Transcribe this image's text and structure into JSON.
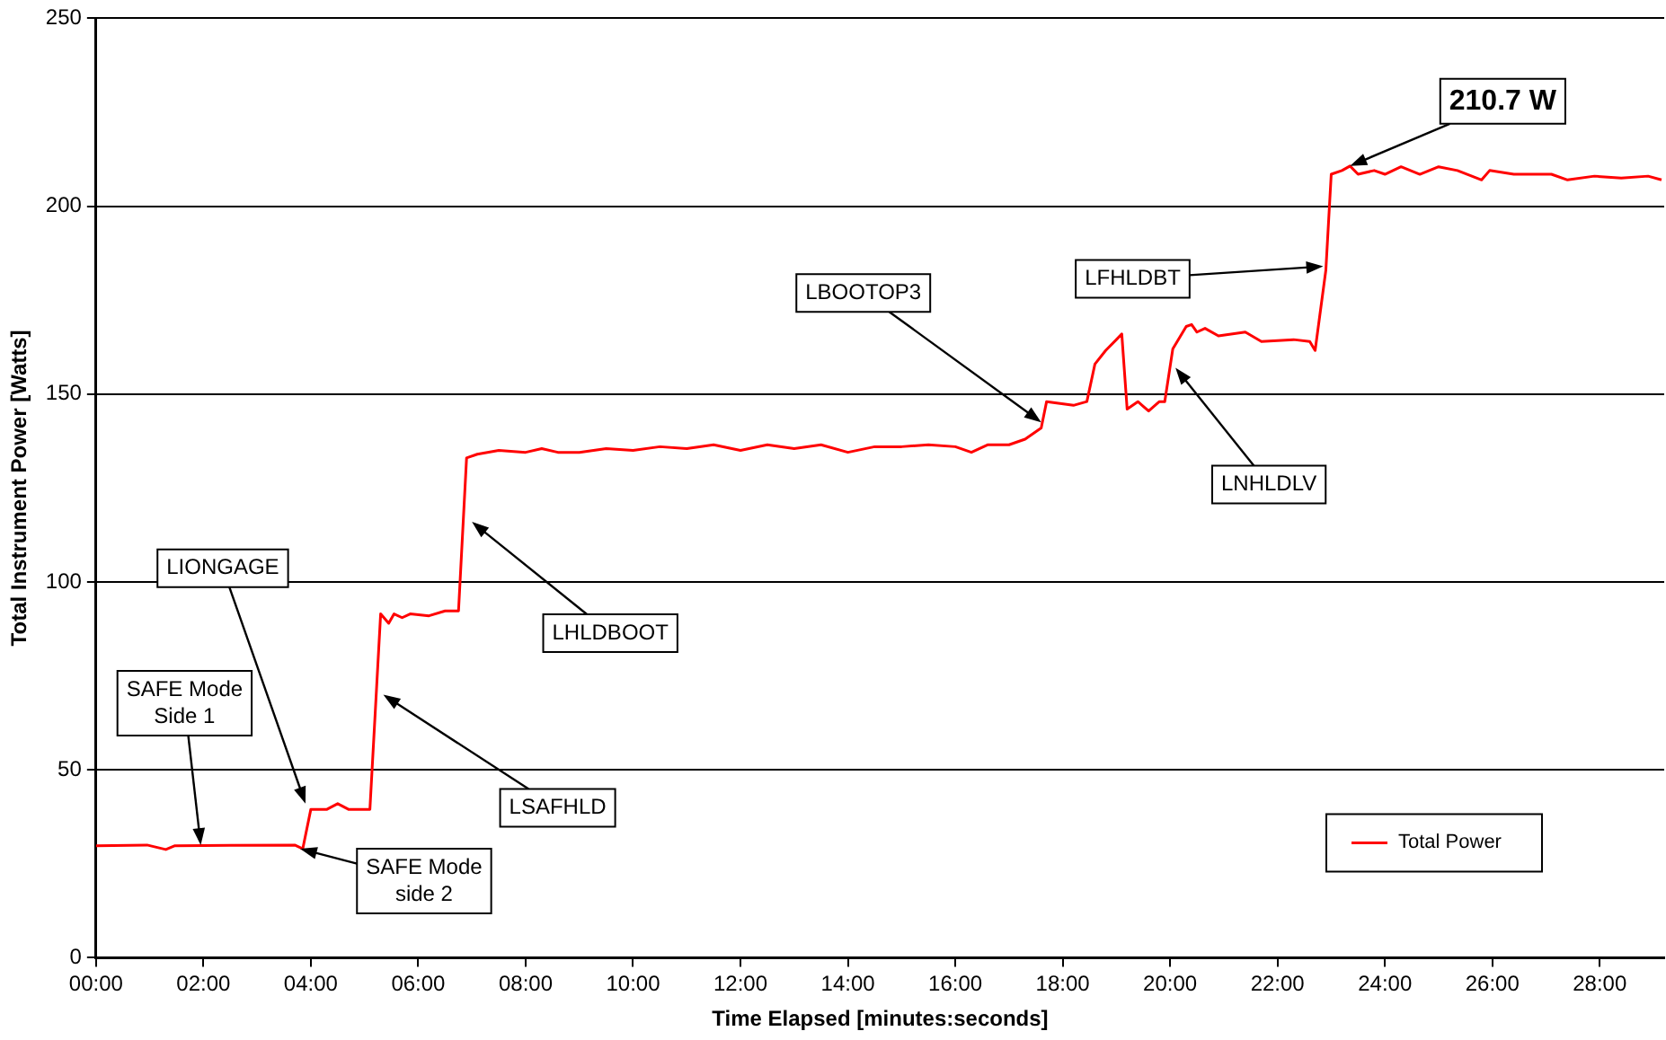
{
  "chart_data": {
    "type": "line",
    "xlabel": "Time Elapsed [minutes:seconds]",
    "ylabel": "Total Instrument Power [Watts]",
    "xlim": [
      0,
      29.2
    ],
    "xticks": [
      {
        "value": 0,
        "label": "00:00"
      },
      {
        "value": 2,
        "label": "02:00"
      },
      {
        "value": 4,
        "label": "04:00"
      },
      {
        "value": 6,
        "label": "06:00"
      },
      {
        "value": 8,
        "label": "08:00"
      },
      {
        "value": 10,
        "label": "10:00"
      },
      {
        "value": 12,
        "label": "12:00"
      },
      {
        "value": 14,
        "label": "14:00"
      },
      {
        "value": 16,
        "label": "16:00"
      },
      {
        "value": 18,
        "label": "18:00"
      },
      {
        "value": 20,
        "label": "20:00"
      },
      {
        "value": 22,
        "label": "22:00"
      },
      {
        "value": 24,
        "label": "24:00"
      },
      {
        "value": 26,
        "label": "26:00"
      },
      {
        "value": 28,
        "label": "28:00"
      }
    ],
    "ylim": [
      0,
      250
    ],
    "yticks": [
      0,
      50,
      100,
      150,
      200,
      250
    ],
    "grid": "y",
    "legend": "bottom right",
    "marker": "none",
    "line_style": "solid",
    "series": [
      {
        "name": "Total Power",
        "color": "#ff0000",
        "x": [
          0,
          0.95,
          1.3,
          1.47,
          3.7,
          3.85,
          4.0,
          4.3,
          4.5,
          4.7,
          5.1,
          5.3,
          5.45,
          5.55,
          5.7,
          5.85,
          6.2,
          6.5,
          6.75,
          6.9,
          7.1,
          7.5,
          8,
          8.3,
          8.6,
          9,
          9.5,
          10,
          10.5,
          11,
          11.5,
          12,
          12.5,
          13,
          13.5,
          14,
          14.5,
          15,
          15.5,
          16,
          16.3,
          16.6,
          17,
          17.3,
          17.6,
          17.7,
          18.2,
          18.45,
          18.6,
          18.8,
          19.0,
          19.1,
          19.2,
          19.4,
          19.6,
          19.8,
          19.9,
          20.05,
          20.3,
          20.4,
          20.5,
          20.65,
          20.9,
          21.4,
          21.7,
          22.3,
          22.6,
          22.7,
          22.9,
          23.0,
          23.2,
          23.35,
          23.5,
          23.8,
          24.0,
          24.3,
          24.65,
          25.0,
          25.35,
          25.8,
          25.95,
          26.4,
          27.1,
          27.4,
          27.9,
          28.4,
          28.9,
          29.15
        ],
        "values": [
          29.8,
          30,
          28.8,
          29.8,
          30,
          29,
          39.5,
          39.5,
          41,
          39.5,
          39.5,
          91.5,
          89,
          91.5,
          90.5,
          91.5,
          91,
          92.3,
          92.3,
          133,
          134,
          135,
          134.5,
          135.5,
          134.5,
          134.5,
          135.5,
          135,
          136,
          135.5,
          136.5,
          135,
          136.5,
          135.5,
          136.5,
          134.5,
          136,
          136,
          136.5,
          136,
          134.5,
          136.5,
          136.5,
          138,
          141,
          148,
          147,
          148,
          158,
          161.6,
          164.5,
          166,
          146,
          148,
          145.5,
          148,
          148,
          162,
          168,
          168.5,
          166.5,
          167.5,
          165.5,
          166.5,
          164,
          164.5,
          164,
          161.6,
          183,
          208.5,
          209.5,
          210.7,
          208.5,
          209.5,
          208.5,
          210.5,
          208.5,
          210.5,
          209.5,
          207,
          209.5,
          208.5,
          208.5,
          207,
          208,
          207.5,
          208,
          207
        ]
      }
    ],
    "annotations": [
      {
        "text": "SAFE Mode\nSide 1",
        "x": 1.95,
        "y": 30
      },
      {
        "text": "SAFE Mode\nside 2",
        "x": 3.8,
        "y": 29
      },
      {
        "text": "LIONGAGE",
        "x": 3.9,
        "y": 41
      },
      {
        "text": "LSAFHLD",
        "x": 5.35,
        "y": 70
      },
      {
        "text": "LHLDBOOT",
        "x": 7.0,
        "y": 116
      },
      {
        "text": "LBOOTOP3",
        "x": 17.6,
        "y": 142.5
      },
      {
        "text": "LNHLDLV",
        "x": 20.1,
        "y": 157
      },
      {
        "text": "LFHLDBT",
        "x": 22.85,
        "y": 184
      },
      {
        "text": "210.7 W",
        "x": 23.35,
        "y": 210.7
      }
    ]
  }
}
